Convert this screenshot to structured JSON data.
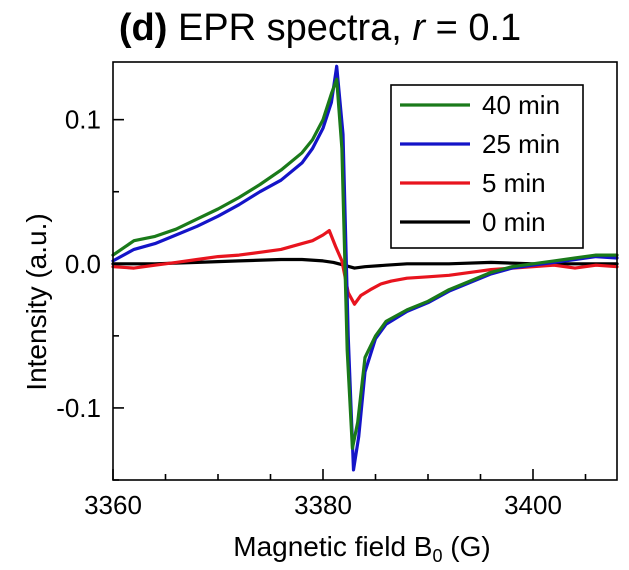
{
  "chart_data": {
    "type": "line",
    "title": {
      "panel": "(d)",
      "text_before_var": "EPR spectra, ",
      "variable": "r",
      "text_after_var": " = 0.1"
    },
    "xlabel": "Magnetic field B",
    "xlabel_subscript": "0",
    "xlabel_unit": " (G)",
    "ylabel": "Intensity (a.u.)",
    "xlim": [
      3360,
      3408
    ],
    "ylim": [
      -0.15,
      0.14
    ],
    "xticks": [
      3360,
      3380,
      3400
    ],
    "xtick_labels": [
      "3360",
      "3380",
      "3400"
    ],
    "yticks": [
      0.1,
      0.0,
      -0.1
    ],
    "ytick_labels": [
      "0.1",
      "0.0",
      "-0.1"
    ],
    "grid": false,
    "legend_position": "top-right",
    "series": [
      {
        "name": "40 min",
        "color": "#1a7a1a",
        "x": [
          3360,
          3362,
          3364,
          3366,
          3368,
          3370,
          3372,
          3374,
          3376,
          3378,
          3379,
          3380,
          3380.8,
          3381.3,
          3381.8,
          3382.3,
          3382.8,
          3383.3,
          3384,
          3385,
          3386,
          3388,
          3390,
          3392,
          3394,
          3396,
          3398,
          3400,
          3402,
          3404,
          3406,
          3408
        ],
        "y": [
          0.006,
          0.016,
          0.019,
          0.024,
          0.031,
          0.038,
          0.046,
          0.055,
          0.065,
          0.077,
          0.086,
          0.1,
          0.118,
          0.128,
          0.08,
          -0.06,
          -0.128,
          -0.11,
          -0.065,
          -0.05,
          -0.04,
          -0.032,
          -0.026,
          -0.018,
          -0.012,
          -0.006,
          -0.002,
          0.0,
          0.002,
          0.004,
          0.006,
          0.006
        ]
      },
      {
        "name": "25 min",
        "color": "#1414c8",
        "x": [
          3360,
          3362,
          3364,
          3366,
          3368,
          3370,
          3372,
          3374,
          3376,
          3378,
          3379,
          3380,
          3380.8,
          3381.3,
          3381.9,
          3382.4,
          3382.9,
          3383.4,
          3384,
          3385,
          3386,
          3388,
          3390,
          3392,
          3394,
          3396,
          3398,
          3400,
          3402,
          3404,
          3406,
          3408
        ],
        "y": [
          0.002,
          0.01,
          0.014,
          0.02,
          0.026,
          0.033,
          0.041,
          0.05,
          0.058,
          0.07,
          0.08,
          0.094,
          0.112,
          0.137,
          0.09,
          -0.05,
          -0.143,
          -0.12,
          -0.075,
          -0.052,
          -0.042,
          -0.033,
          -0.027,
          -0.019,
          -0.013,
          -0.007,
          -0.003,
          -0.001,
          0.001,
          0.003,
          0.005,
          0.004
        ]
      },
      {
        "name": "5 min",
        "color": "#e8141e",
        "x": [
          3360,
          3362,
          3364,
          3366,
          3368,
          3370,
          3372,
          3374,
          3376,
          3378,
          3379,
          3380,
          3380.6,
          3381.2,
          3381.8,
          3382.4,
          3383,
          3383.6,
          3384.5,
          3385.5,
          3386.5,
          3388,
          3390,
          3392,
          3394,
          3396,
          3398,
          3400,
          3402,
          3404,
          3406,
          3408
        ],
        "y": [
          -0.002,
          -0.003,
          -0.001,
          0.001,
          0.003,
          0.005,
          0.006,
          0.008,
          0.01,
          0.014,
          0.016,
          0.02,
          0.023,
          0.012,
          0.002,
          -0.02,
          -0.028,
          -0.022,
          -0.018,
          -0.014,
          -0.012,
          -0.01,
          -0.009,
          -0.008,
          -0.006,
          -0.004,
          -0.003,
          -0.002,
          -0.001,
          -0.003,
          -0.001,
          -0.002
        ]
      },
      {
        "name": "0 min",
        "color": "#000000",
        "x": [
          3360,
          3364,
          3368,
          3372,
          3376,
          3378,
          3380,
          3381,
          3382,
          3383,
          3384,
          3386,
          3388,
          3392,
          3396,
          3400,
          3404,
          3408
        ],
        "y": [
          0.0,
          0.0,
          0.001,
          0.002,
          0.003,
          0.003,
          0.002,
          0.001,
          -0.001,
          -0.003,
          -0.002,
          -0.001,
          0.0,
          0.0,
          0.001,
          0.0,
          0.0,
          0.0
        ]
      }
    ]
  }
}
